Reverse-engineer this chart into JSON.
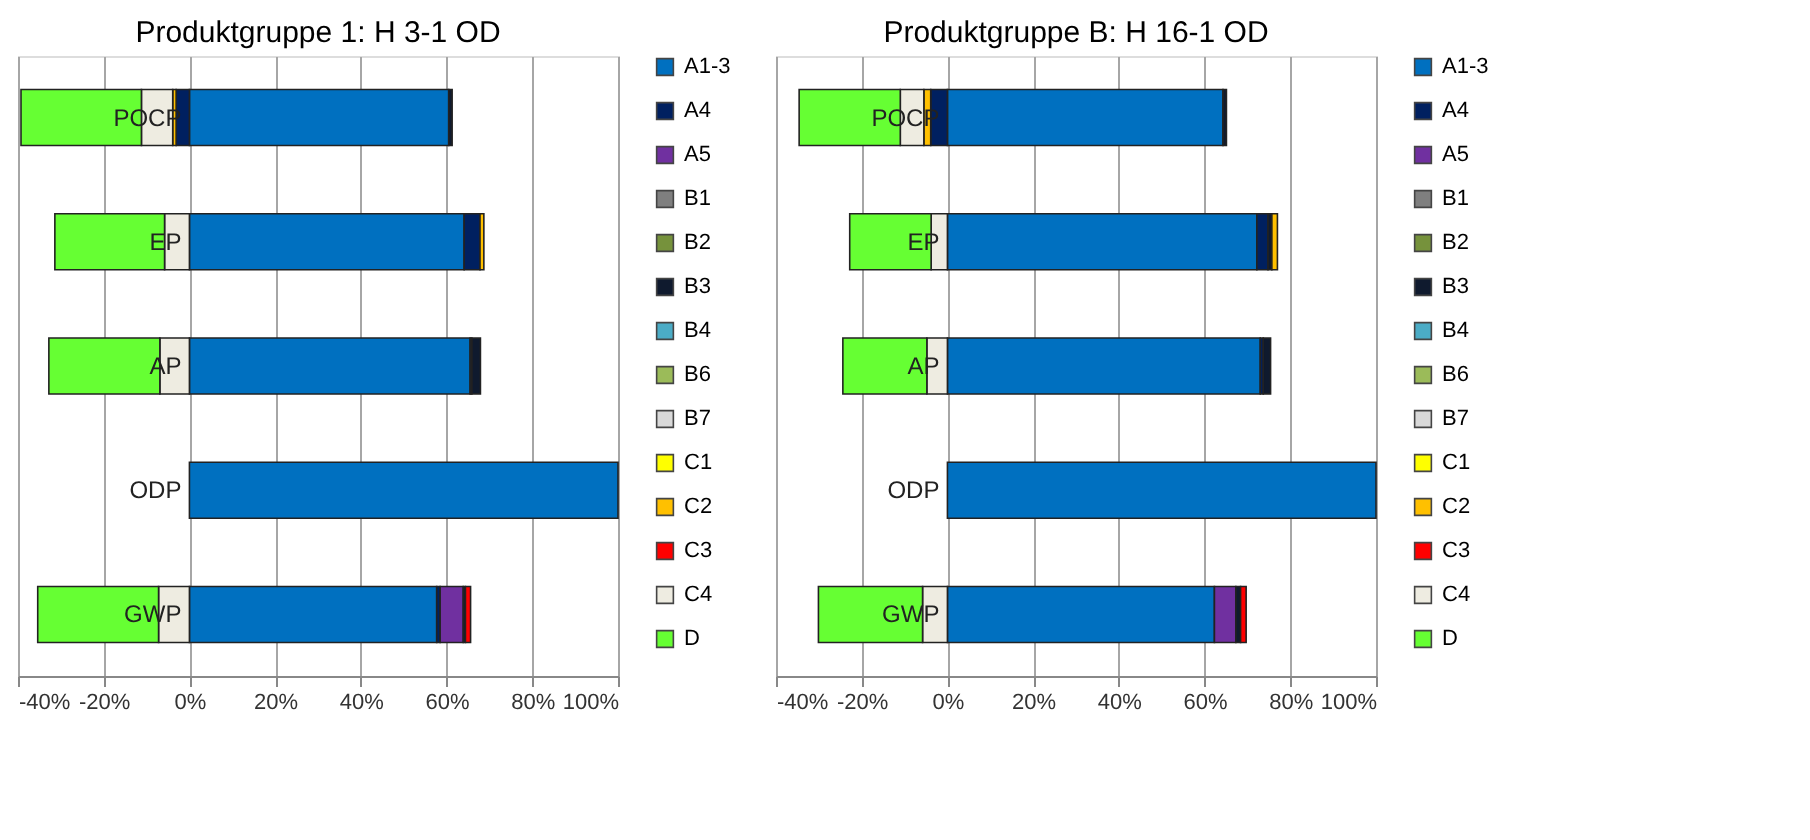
{
  "chart_data": [
    {
      "type": "bar",
      "title": "Produktgruppe 1: H 3-1 OD",
      "orientation": "horizontal",
      "stacked": true,
      "grid": "x",
      "legend": "right",
      "categories": [
        "POCP",
        "EP",
        "AP",
        "ODP",
        "GWP"
      ],
      "xlim": [
        -40,
        100
      ],
      "xticks": [
        {
          "value": -40,
          "label": "-40%"
        },
        {
          "value": -20,
          "label": "-20%"
        },
        {
          "value": 0,
          "label": "0%"
        },
        {
          "value": 20,
          "label": "20%"
        },
        {
          "value": 40,
          "label": "40%"
        },
        {
          "value": 60,
          "label": "60%"
        },
        {
          "value": 80,
          "label": "80%"
        },
        {
          "value": 100,
          "label": "100%"
        }
      ],
      "series": [
        {
          "name": "A1-3",
          "color": "#0070c0",
          "values": [
            60.5,
            64.1,
            65.5,
            100,
            57.7
          ]
        },
        {
          "name": "A4",
          "color": "#002060",
          "values": [
            -3.1,
            3.7,
            0.4,
            null,
            0.8
          ]
        },
        {
          "name": "A5",
          "color": "#7030a0",
          "values": [
            null,
            null,
            null,
            null,
            5.4
          ]
        },
        {
          "name": "B1",
          "color": "#7f7f7f",
          "values": [
            null,
            null,
            null,
            null,
            null
          ]
        },
        {
          "name": "B2",
          "color": "#76923c",
          "values": [
            null,
            null,
            null,
            null,
            null
          ]
        },
        {
          "name": "B3",
          "color": "#0f1a2e",
          "values": [
            0.8,
            null,
            2.0,
            null,
            0.5
          ]
        },
        {
          "name": "B4",
          "color": "#4bacc6",
          "values": [
            null,
            null,
            null,
            null,
            null
          ]
        },
        {
          "name": "B6",
          "color": "#9bbb59",
          "values": [
            null,
            null,
            null,
            null,
            null
          ]
        },
        {
          "name": "B7",
          "color": "#d9d9d9",
          "values": [
            null,
            null,
            null,
            null,
            null
          ]
        },
        {
          "name": "C1",
          "color": "#ffff00",
          "values": [
            null,
            null,
            null,
            null,
            null
          ]
        },
        {
          "name": "C2",
          "color": "#ffc000",
          "values": [
            -0.8,
            0.9,
            null,
            null,
            null
          ]
        },
        {
          "name": "C3",
          "color": "#ff0000",
          "values": [
            null,
            null,
            null,
            null,
            1.2
          ]
        },
        {
          "name": "C4",
          "color": "#eeece1",
          "values": [
            -7.3,
            -5.8,
            -6.9,
            null,
            -7.2
          ]
        },
        {
          "name": "D",
          "color": "#66ff33",
          "values": [
            -28.1,
            -25.6,
            -25.9,
            null,
            -28.2
          ]
        }
      ]
    },
    {
      "type": "bar",
      "title": "Produktgruppe B: H 16-1 OD",
      "orientation": "horizontal",
      "stacked": true,
      "grid": "x",
      "legend": "right",
      "categories": [
        "POCP",
        "EP",
        "AP",
        "ODP",
        "GWP"
      ],
      "xlim": [
        -40,
        100
      ],
      "xticks": [
        {
          "value": -40,
          "label": "-40%"
        },
        {
          "value": -20,
          "label": "-20%"
        },
        {
          "value": 0,
          "label": "0%"
        },
        {
          "value": 20,
          "label": "20%"
        },
        {
          "value": 40,
          "label": "40%"
        },
        {
          "value": 60,
          "label": "60%"
        },
        {
          "value": 80,
          "label": "80%"
        },
        {
          "value": 100,
          "label": "100%"
        }
      ],
      "series": [
        {
          "name": "A1-3",
          "color": "#0070c0",
          "values": [
            64.3,
            72.2,
            73.0,
            100,
            62.3
          ]
        },
        {
          "name": "A4",
          "color": "#002060",
          "values": [
            -3.9,
            2.6,
            0.7,
            null,
            null
          ]
        },
        {
          "name": "A5",
          "color": "#7030a0",
          "values": [
            null,
            null,
            null,
            null,
            5.0
          ]
        },
        {
          "name": "B1",
          "color": "#7f7f7f",
          "values": [
            null,
            null,
            null,
            null,
            null
          ]
        },
        {
          "name": "B2",
          "color": "#76923c",
          "values": [
            null,
            null,
            null,
            null,
            null
          ]
        },
        {
          "name": "B3",
          "color": "#0f1a2e",
          "values": [
            0.8,
            0.9,
            1.7,
            null,
            1.1
          ]
        },
        {
          "name": "B4",
          "color": "#4bacc6",
          "values": [
            null,
            null,
            null,
            null,
            null
          ]
        },
        {
          "name": "B6",
          "color": "#9bbb59",
          "values": [
            null,
            null,
            null,
            null,
            null
          ]
        },
        {
          "name": "B7",
          "color": "#d9d9d9",
          "values": [
            null,
            null,
            null,
            null,
            null
          ]
        },
        {
          "name": "C1",
          "color": "#ffff00",
          "values": [
            null,
            null,
            null,
            null,
            null
          ]
        },
        {
          "name": "C2",
          "color": "#ffc000",
          "values": [
            -1.6,
            1.3,
            null,
            null,
            null
          ]
        },
        {
          "name": "C3",
          "color": "#ff0000",
          "values": [
            null,
            null,
            null,
            null,
            1.3
          ]
        },
        {
          "name": "C4",
          "color": "#eeece1",
          "values": [
            -5.5,
            -3.8,
            -4.8,
            null,
            -5.8
          ]
        },
        {
          "name": "D",
          "color": "#66ff33",
          "values": [
            -23.6,
            -19.0,
            -19.6,
            null,
            -24.3
          ]
        }
      ]
    }
  ]
}
